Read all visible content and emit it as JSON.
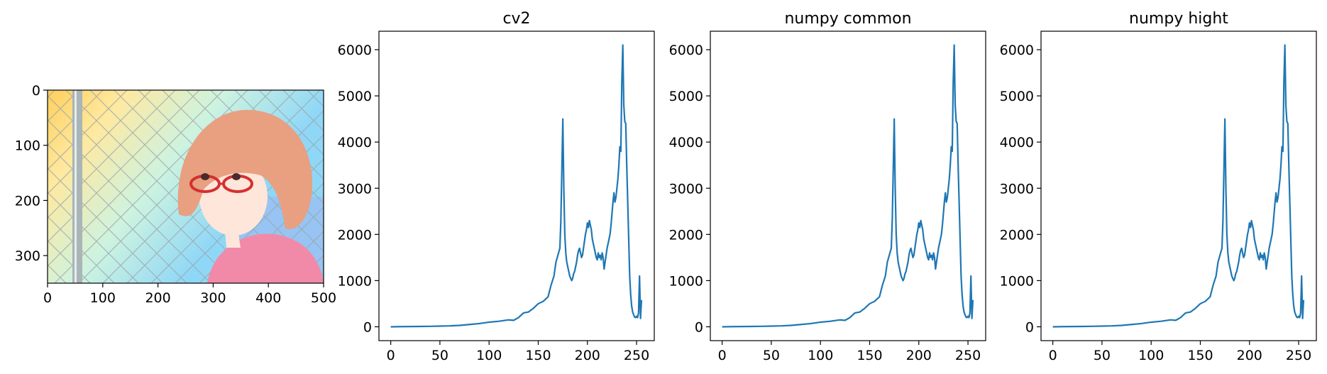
{
  "image_panel": {
    "xticks": [
      0,
      100,
      200,
      300,
      400,
      500
    ],
    "yticks": [
      0,
      100,
      200,
      300
    ],
    "xlim": [
      0,
      500
    ],
    "ylim": [
      0,
      350
    ],
    "palette": {
      "sky_top": "#ffe9a0",
      "sky_mid": "#cdf3e0",
      "sky_right": "#8fd7f7",
      "warm_left": "#ffcf5c",
      "pole": "#a9b5b6",
      "fence": "#9aa3a6",
      "hair": "#e8a080",
      "skin": "#ffe6da",
      "glasses": "#d43030",
      "jacket": "#f08aa8"
    }
  },
  "chart_data": [
    {
      "type": "line",
      "title": "cv2",
      "xlabel": "",
      "ylabel": "",
      "xlim": [
        -12,
        268
      ],
      "ylim": [
        -300,
        6400
      ],
      "xticks": [
        0,
        50,
        100,
        150,
        200,
        250
      ],
      "yticks": [
        0,
        1000,
        2000,
        3000,
        4000,
        5000,
        6000
      ],
      "line_color": "#1f77b4",
      "grid": false,
      "x": [
        0,
        10,
        20,
        30,
        40,
        50,
        60,
        70,
        80,
        90,
        100,
        110,
        120,
        125,
        130,
        135,
        140,
        145,
        150,
        155,
        160,
        163,
        166,
        168,
        170,
        172,
        173,
        174,
        175,
        176,
        177,
        178,
        179,
        180,
        181,
        182,
        183,
        184,
        185,
        186,
        187,
        188,
        189,
        190,
        191,
        192,
        193,
        194,
        195,
        196,
        197,
        198,
        199,
        200,
        201,
        202,
        203,
        204,
        205,
        206,
        207,
        208,
        209,
        210,
        211,
        212,
        213,
        214,
        215,
        216,
        217,
        218,
        219,
        220,
        221,
        222,
        223,
        224,
        225,
        226,
        227,
        228,
        229,
        230,
        231,
        232,
        233,
        234,
        235,
        236,
        237,
        238,
        239,
        240,
        241,
        242,
        243,
        244,
        245,
        246,
        247,
        248,
        249,
        250,
        251,
        252,
        253,
        254,
        255
      ],
      "values": [
        0,
        3,
        5,
        7,
        10,
        15,
        20,
        30,
        50,
        70,
        100,
        120,
        150,
        140,
        200,
        300,
        320,
        400,
        500,
        550,
        650,
        900,
        1100,
        1400,
        1550,
        1700,
        2300,
        3400,
        4500,
        3000,
        2000,
        1600,
        1400,
        1300,
        1200,
        1100,
        1050,
        1000,
        1050,
        1150,
        1200,
        1300,
        1400,
        1550,
        1650,
        1700,
        1600,
        1500,
        1550,
        1700,
        1850,
        2000,
        2100,
        2250,
        2150,
        2300,
        2200,
        2100,
        1900,
        1800,
        1700,
        1600,
        1500,
        1450,
        1600,
        1500,
        1550,
        1450,
        1600,
        1500,
        1250,
        1400,
        1550,
        1700,
        1800,
        1900,
        2000,
        2200,
        2450,
        2700,
        2900,
        2700,
        2800,
        3000,
        3200,
        3500,
        3900,
        3800,
        5300,
        6100,
        4800,
        4450,
        4400,
        3500,
        2700,
        1900,
        1100,
        700,
        450,
        320,
        260,
        210,
        200,
        230,
        200,
        300,
        1100,
        180,
        580
      ]
    },
    {
      "type": "line",
      "title": "numpy common",
      "xlabel": "",
      "ylabel": "",
      "xlim": [
        -12,
        268
      ],
      "ylim": [
        -300,
        6400
      ],
      "xticks": [
        0,
        50,
        100,
        150,
        200,
        250
      ],
      "yticks": [
        0,
        1000,
        2000,
        3000,
        4000,
        5000,
        6000
      ],
      "line_color": "#1f77b4",
      "grid": false,
      "x": [
        0,
        10,
        20,
        30,
        40,
        50,
        60,
        70,
        80,
        90,
        100,
        110,
        120,
        125,
        130,
        135,
        140,
        145,
        150,
        155,
        160,
        163,
        166,
        168,
        170,
        172,
        173,
        174,
        175,
        176,
        177,
        178,
        179,
        180,
        181,
        182,
        183,
        184,
        185,
        186,
        187,
        188,
        189,
        190,
        191,
        192,
        193,
        194,
        195,
        196,
        197,
        198,
        199,
        200,
        201,
        202,
        203,
        204,
        205,
        206,
        207,
        208,
        209,
        210,
        211,
        212,
        213,
        214,
        215,
        216,
        217,
        218,
        219,
        220,
        221,
        222,
        223,
        224,
        225,
        226,
        227,
        228,
        229,
        230,
        231,
        232,
        233,
        234,
        235,
        236,
        237,
        238,
        239,
        240,
        241,
        242,
        243,
        244,
        245,
        246,
        247,
        248,
        249,
        250,
        251,
        252,
        253,
        254,
        255
      ],
      "values": [
        0,
        3,
        5,
        7,
        10,
        15,
        20,
        30,
        50,
        70,
        100,
        120,
        150,
        140,
        200,
        300,
        320,
        400,
        500,
        550,
        650,
        900,
        1100,
        1400,
        1550,
        1700,
        2300,
        3400,
        4500,
        3000,
        2000,
        1600,
        1400,
        1300,
        1200,
        1100,
        1050,
        1000,
        1050,
        1150,
        1200,
        1300,
        1400,
        1550,
        1650,
        1700,
        1600,
        1500,
        1550,
        1700,
        1850,
        2000,
        2100,
        2250,
        2150,
        2300,
        2200,
        2100,
        1900,
        1800,
        1700,
        1600,
        1500,
        1450,
        1600,
        1500,
        1550,
        1450,
        1600,
        1500,
        1250,
        1400,
        1550,
        1700,
        1800,
        1900,
        2000,
        2200,
        2450,
        2700,
        2900,
        2700,
        2800,
        3000,
        3200,
        3500,
        3900,
        3800,
        5300,
        6100,
        4800,
        4450,
        4400,
        3500,
        2700,
        1900,
        1100,
        700,
        450,
        320,
        260,
        210,
        200,
        230,
        200,
        300,
        1100,
        180,
        580
      ]
    },
    {
      "type": "line",
      "title": "numpy hight",
      "xlabel": "",
      "ylabel": "",
      "xlim": [
        -12,
        268
      ],
      "ylim": [
        -300,
        6400
      ],
      "xticks": [
        0,
        50,
        100,
        150,
        200,
        250
      ],
      "yticks": [
        0,
        1000,
        2000,
        3000,
        4000,
        5000,
        6000
      ],
      "line_color": "#1f77b4",
      "grid": false,
      "x": [
        0,
        10,
        20,
        30,
        40,
        50,
        60,
        70,
        80,
        90,
        100,
        110,
        120,
        125,
        130,
        135,
        140,
        145,
        150,
        155,
        160,
        163,
        166,
        168,
        170,
        172,
        173,
        174,
        175,
        176,
        177,
        178,
        179,
        180,
        181,
        182,
        183,
        184,
        185,
        186,
        187,
        188,
        189,
        190,
        191,
        192,
        193,
        194,
        195,
        196,
        197,
        198,
        199,
        200,
        201,
        202,
        203,
        204,
        205,
        206,
        207,
        208,
        209,
        210,
        211,
        212,
        213,
        214,
        215,
        216,
        217,
        218,
        219,
        220,
        221,
        222,
        223,
        224,
        225,
        226,
        227,
        228,
        229,
        230,
        231,
        232,
        233,
        234,
        235,
        236,
        237,
        238,
        239,
        240,
        241,
        242,
        243,
        244,
        245,
        246,
        247,
        248,
        249,
        250,
        251,
        252,
        253,
        254,
        255
      ],
      "values": [
        0,
        3,
        5,
        7,
        10,
        15,
        20,
        30,
        50,
        70,
        100,
        120,
        150,
        140,
        200,
        300,
        320,
        400,
        500,
        550,
        650,
        900,
        1100,
        1400,
        1550,
        1700,
        2300,
        3400,
        4500,
        3000,
        2000,
        1600,
        1400,
        1300,
        1200,
        1100,
        1050,
        1000,
        1050,
        1150,
        1200,
        1300,
        1400,
        1550,
        1650,
        1700,
        1600,
        1500,
        1550,
        1700,
        1850,
        2000,
        2100,
        2250,
        2150,
        2300,
        2200,
        2100,
        1900,
        1800,
        1700,
        1600,
        1500,
        1450,
        1600,
        1500,
        1550,
        1450,
        1600,
        1500,
        1250,
        1400,
        1550,
        1700,
        1800,
        1900,
        2000,
        2200,
        2450,
        2700,
        2900,
        2700,
        2800,
        3000,
        3200,
        3500,
        3900,
        3800,
        5300,
        6100,
        4800,
        4450,
        4400,
        3500,
        2700,
        1900,
        1100,
        700,
        450,
        320,
        260,
        210,
        200,
        230,
        200,
        300,
        1100,
        180,
        580
      ]
    }
  ]
}
